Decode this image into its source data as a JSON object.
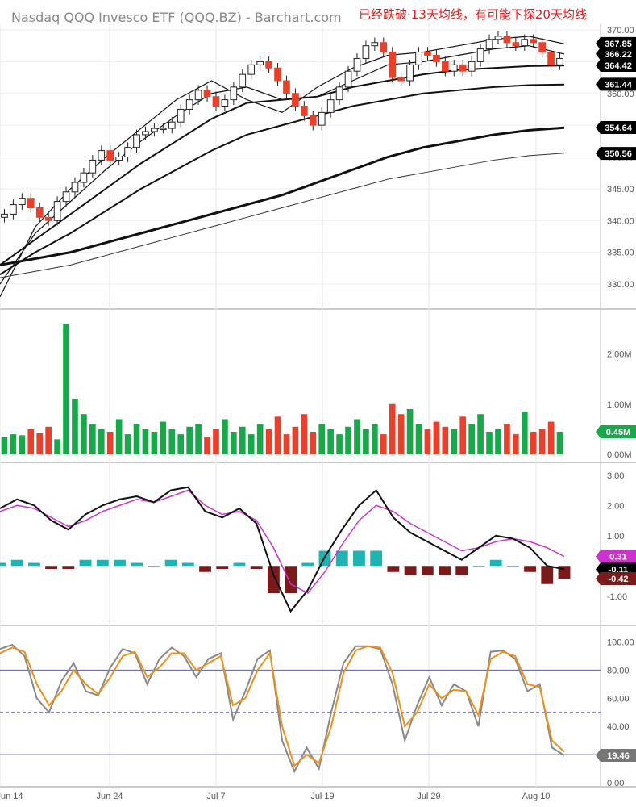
{
  "header": {
    "title": "Nasdaq QQQ Invesco ETF (QQQ.BZ) - Barchart.com",
    "note": "已经跌破·13天均线，有可能下探20天均线"
  },
  "colors": {
    "up": "#18a84a",
    "down": "#e8402a",
    "macd_pos": "#1fb3b3",
    "macd_neg": "#7a1a1a",
    "signal": "#cc33cc",
    "stoch_k": "#888888",
    "stoch_d": "#f0901a",
    "ref_line": "#5a5ab4"
  },
  "chart_data": [
    {
      "type": "candlestick",
      "title": "Price",
      "x_ticks": [
        "Jun 14",
        "Jun 24",
        "Jul 7",
        "Jul 19",
        "Jul 29",
        "Aug 10"
      ],
      "y_ticks": [
        "370.00",
        "365.00",
        "360.00",
        "355.00",
        "350.00",
        "345.00",
        "340.00",
        "335.00",
        "330.00"
      ],
      "ylim": [
        327,
        370.5
      ],
      "price_series": [
        341.0,
        342.5,
        343.5,
        342.0,
        340.5,
        340.0,
        343.0,
        344.5,
        346.0,
        347.5,
        349.5,
        351.0,
        349.5,
        350.0,
        351.5,
        353.5,
        354.0,
        354.5,
        354.5,
        355.5,
        357.5,
        359.0,
        360.5,
        359.5,
        358.0,
        359.0,
        361.0,
        363.0,
        364.5,
        365.0,
        364.0,
        362.0,
        360.0,
        358.0,
        356.5,
        355.0,
        357.0,
        359.0,
        361.0,
        363.5,
        365.5,
        367.5,
        368.0,
        366.5,
        362.5,
        362.0,
        364.5,
        366.5,
        366.0,
        365.0,
        363.5,
        364.5,
        363.5,
        365.0,
        367.0,
        368.5,
        369.0,
        368.0,
        367.5,
        368.5,
        368.0,
        366.5,
        364.5,
        365.5
      ],
      "moving_averages": [
        {
          "label": "367.85",
          "values": [
            328.0,
            339.0,
            345.0,
            350.0,
            354.5,
            359.0,
            362.0,
            359.0,
            357.0,
            361.0,
            364.0,
            366.0,
            366.5,
            367.5,
            368.5,
            369.0,
            367.8
          ]
        },
        {
          "label": "366.22",
          "values": [
            330.0,
            338.0,
            343.0,
            348.0,
            352.5,
            356.5,
            360.0,
            361.0,
            359.0,
            359.5,
            362.0,
            364.5,
            365.0,
            366.0,
            367.0,
            367.5,
            366.2
          ]
        },
        {
          "label": "364.42",
          "values": [
            333.0,
            337.0,
            341.0,
            345.0,
            349.0,
            352.5,
            356.0,
            358.5,
            359.0,
            359.5,
            361.0,
            362.0,
            363.0,
            363.7,
            364.0,
            364.3,
            364.4
          ]
        },
        {
          "label": "361.44",
          "values": [
            331.5,
            335.0,
            338.0,
            341.5,
            345.0,
            348.0,
            351.0,
            353.5,
            355.0,
            356.5,
            358.0,
            359.0,
            360.0,
            360.5,
            361.0,
            361.3,
            361.4
          ]
        },
        {
          "label": "354.64",
          "values": [
            333.0,
            334.0,
            335.0,
            336.5,
            338.0,
            339.5,
            341.0,
            342.5,
            344.0,
            346.0,
            348.0,
            350.0,
            351.5,
            352.5,
            353.5,
            354.2,
            354.6
          ]
        },
        {
          "label": "350.56",
          "values": [
            331.0,
            332.0,
            333.0,
            334.5,
            336.0,
            337.5,
            339.0,
            340.5,
            342.0,
            343.5,
            345.0,
            346.5,
            347.5,
            348.5,
            349.5,
            350.2,
            350.6
          ]
        }
      ]
    },
    {
      "type": "bar",
      "title": "Volume",
      "y_ticks": [
        "2.00M",
        "1.00M",
        "0.00M"
      ],
      "ylim": [
        0,
        2.7
      ],
      "current_value_label": "0.45M",
      "volume_series": [
        0.35,
        0.4,
        0.38,
        0.5,
        0.42,
        0.55,
        0.3,
        2.6,
        1.1,
        0.8,
        0.6,
        0.5,
        0.45,
        0.7,
        0.4,
        0.6,
        0.5,
        0.45,
        0.65,
        0.5,
        0.4,
        0.55,
        0.6,
        0.35,
        0.5,
        0.7,
        0.45,
        0.55,
        0.4,
        0.6,
        0.5,
        0.75,
        0.4,
        0.55,
        0.8,
        0.45,
        0.6,
        0.5,
        0.4,
        0.55,
        0.7,
        0.5,
        0.6,
        0.4,
        1.0,
        0.8,
        0.9,
        0.6,
        0.5,
        0.65,
        0.55,
        0.5,
        0.75,
        0.6,
        0.8,
        0.45,
        0.5,
        0.6,
        0.4,
        0.85,
        0.45,
        0.5,
        0.65,
        0.45
      ]
    },
    {
      "type": "line",
      "title": "MACD",
      "y_ticks": [
        "3.00",
        "2.00",
        "1.00",
        "-1.00"
      ],
      "ylim": [
        -1.7,
        3.1
      ],
      "value_labels": [
        "0.31",
        "-0.11",
        "-0.42"
      ],
      "macd": [
        1.9,
        2.2,
        2.0,
        1.5,
        1.2,
        1.7,
        2.0,
        2.2,
        2.3,
        2.1,
        2.5,
        2.6,
        1.8,
        1.6,
        1.9,
        1.4,
        -0.3,
        -1.5,
        -0.8,
        0.3,
        1.2,
        2.0,
        2.5,
        1.6,
        1.1,
        0.8,
        0.5,
        0.2,
        0.6,
        1.0,
        0.9,
        0.6,
        0.0,
        -0.11
      ],
      "signal": [
        1.8,
        2.0,
        1.9,
        1.6,
        1.3,
        1.5,
        1.8,
        2.0,
        2.2,
        2.1,
        2.3,
        2.5,
        2.0,
        1.7,
        1.8,
        1.5,
        0.6,
        -0.6,
        -0.9,
        -0.2,
        0.7,
        1.5,
        2.0,
        1.8,
        1.4,
        1.1,
        0.8,
        0.5,
        0.6,
        0.8,
        0.9,
        0.8,
        0.6,
        0.31
      ]
    },
    {
      "type": "line",
      "title": "Stochastic",
      "y_ticks": [
        "100.00",
        "80.00",
        "60.00",
        "40.00",
        "20.00",
        "0.00"
      ],
      "ylim": [
        0,
        102
      ],
      "current_value_label": "19.46",
      "ref_lines": [
        80,
        50,
        20
      ],
      "k": [
        95,
        98,
        90,
        60,
        50,
        72,
        85,
        65,
        62,
        82,
        95,
        92,
        70,
        88,
        96,
        90,
        75,
        88,
        92,
        45,
        65,
        88,
        94,
        30,
        8,
        25,
        10,
        50,
        85,
        97,
        97,
        95,
        70,
        30,
        55,
        75,
        55,
        70,
        65,
        40,
        93,
        94,
        88,
        65,
        70,
        25,
        19.46
      ],
      "d": [
        92,
        96,
        93,
        70,
        55,
        65,
        80,
        70,
        63,
        75,
        90,
        93,
        75,
        82,
        92,
        92,
        80,
        85,
        90,
        55,
        60,
        80,
        92,
        40,
        12,
        20,
        14,
        40,
        78,
        94,
        97,
        96,
        78,
        40,
        50,
        70,
        60,
        66,
        65,
        48,
        88,
        93,
        90,
        70,
        68,
        30,
        22
      ]
    }
  ]
}
